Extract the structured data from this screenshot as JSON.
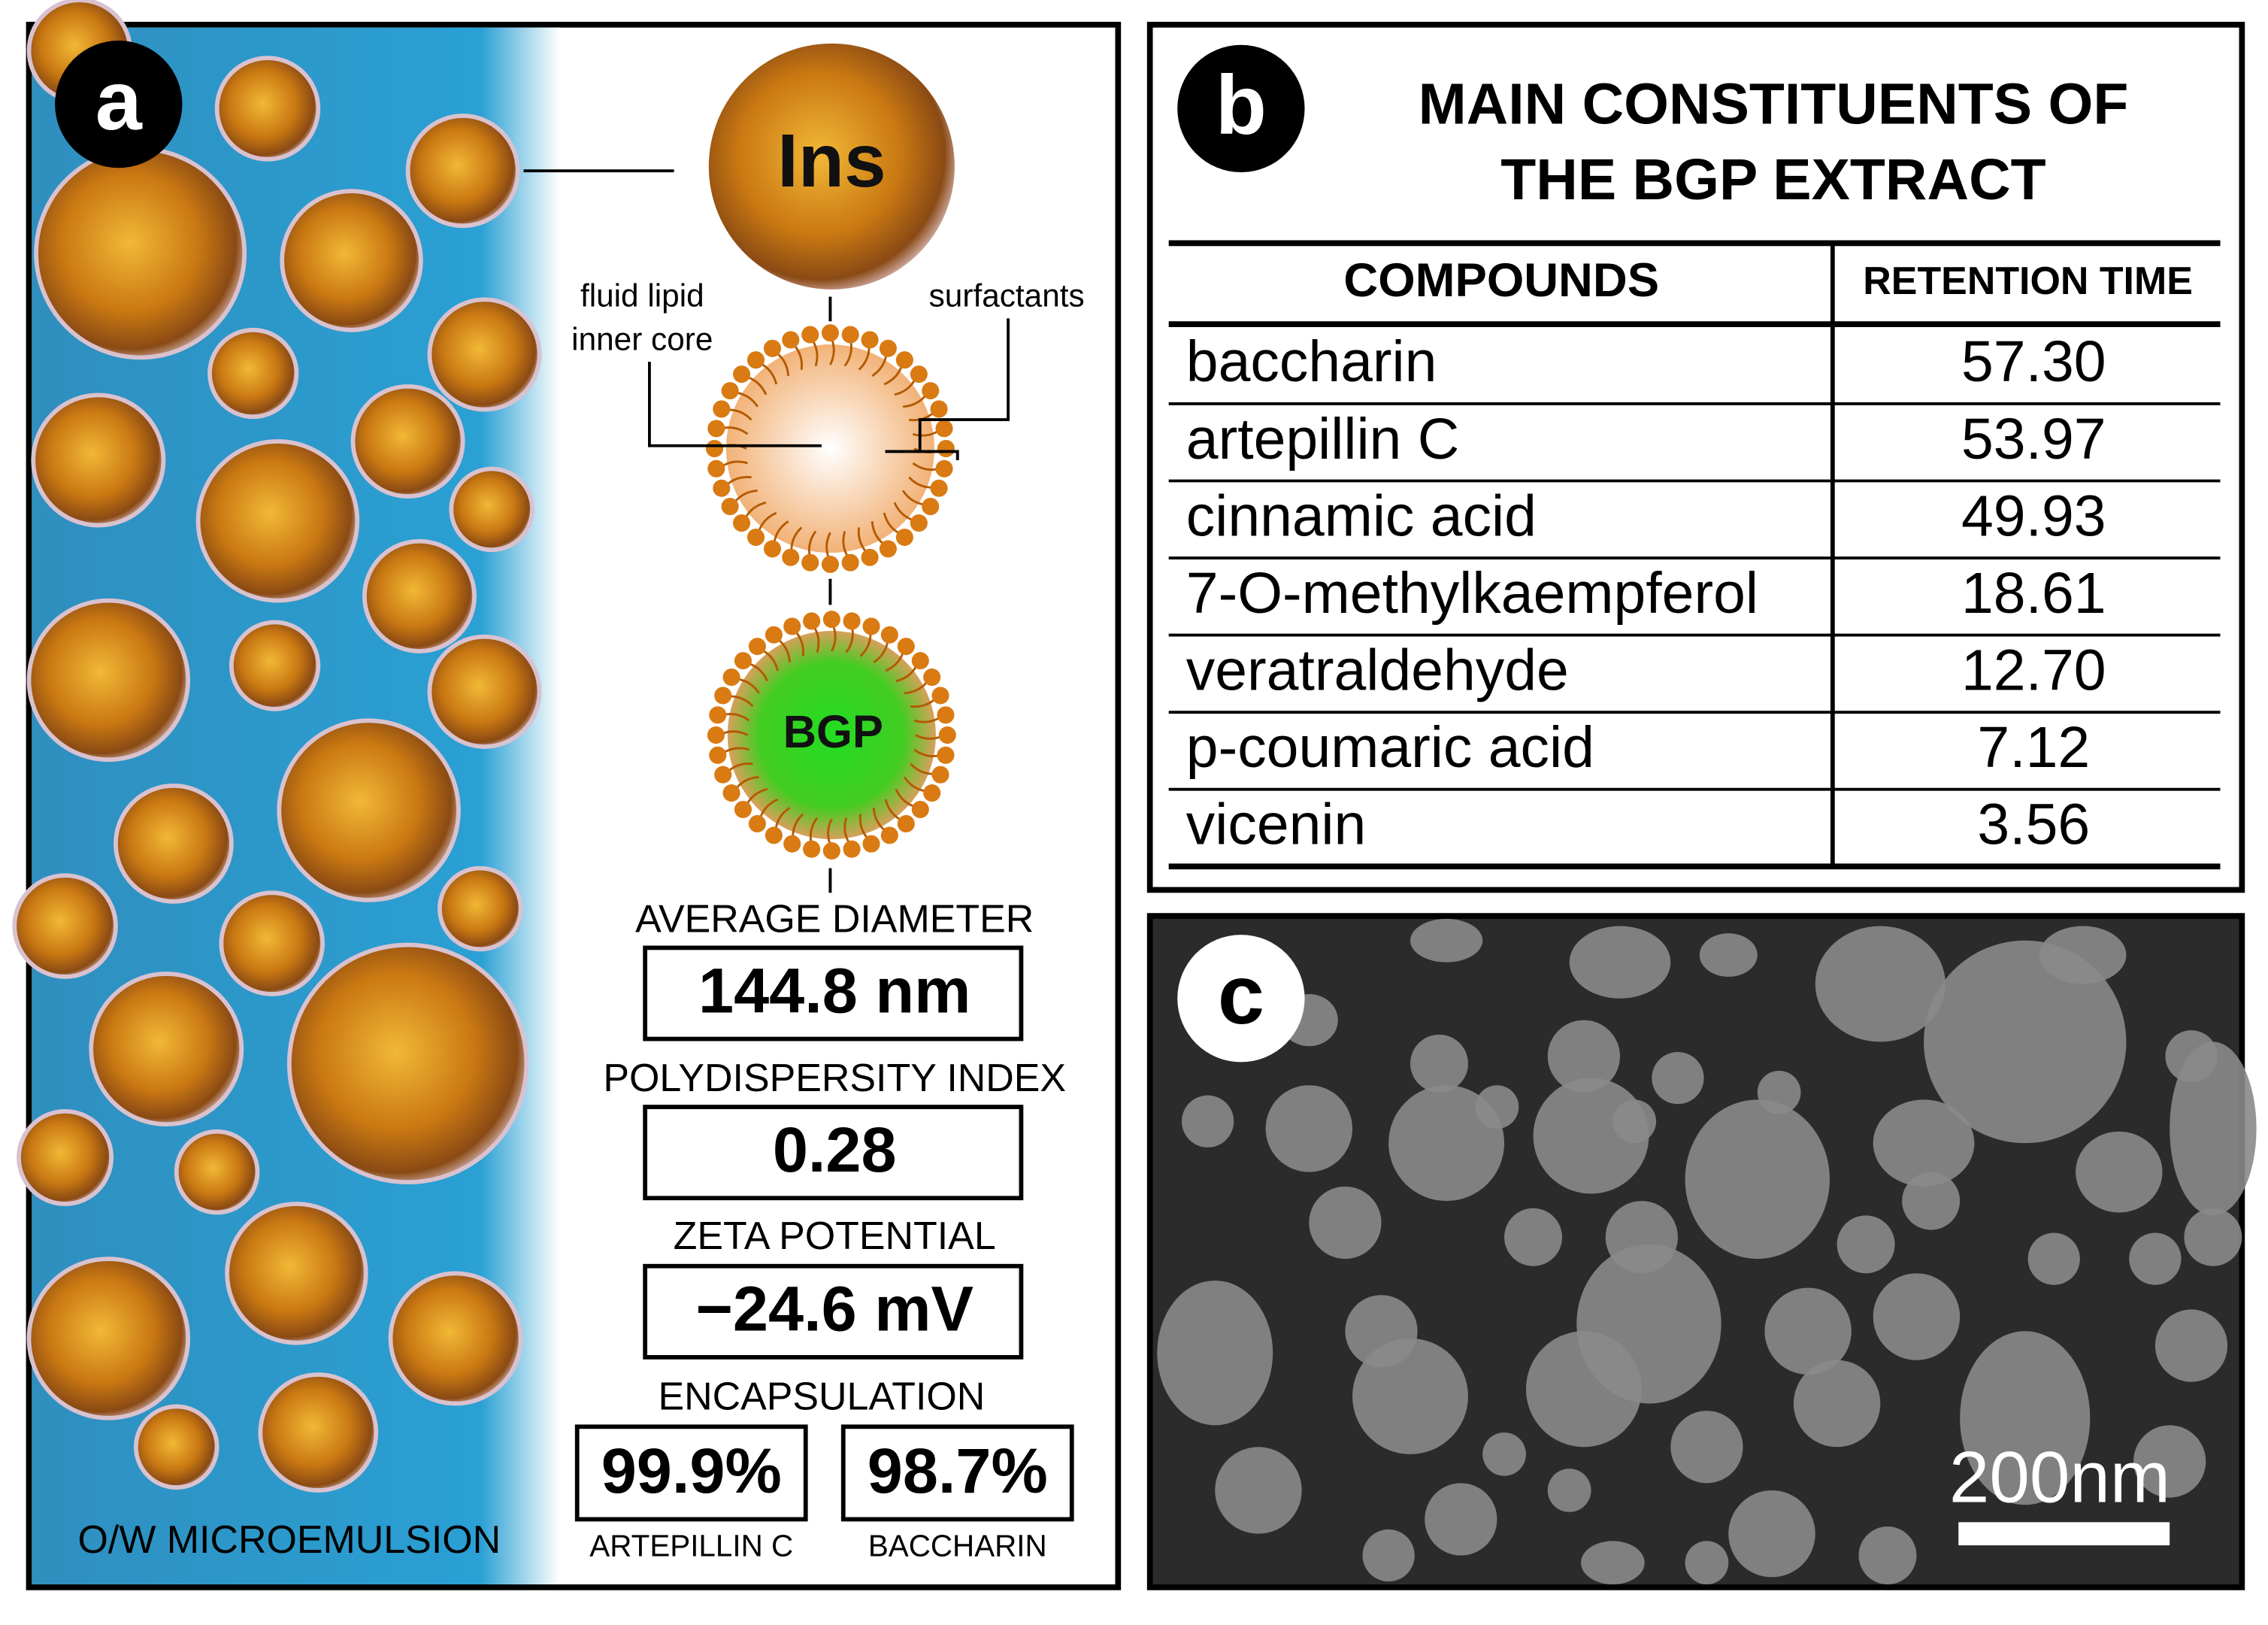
{
  "panel_a": {
    "label": "a",
    "ins_label": "Ins",
    "core_label_lines": [
      "fluid lipid",
      "inner core"
    ],
    "surfactants_label": "surfactants",
    "bgp_label": "BGP",
    "measurements": [
      {
        "title": "AVERAGE DIAMETER",
        "value": "144.8 nm"
      },
      {
        "title": "POLYDISPERSITY INDEX",
        "value": "0.28"
      },
      {
        "title": "ZETA POTENTIAL",
        "value": "−24.6 mV"
      }
    ],
    "encapsulation": {
      "title": "ENCAPSULATION",
      "items": [
        {
          "value": "99.9%",
          "label": "ARTEPILLIN C"
        },
        {
          "value": "98.7%",
          "label": "BACCHARIN"
        }
      ]
    },
    "footer": "O/W MICROEMULSION"
  },
  "panel_b": {
    "label": "b",
    "title_lines": [
      "MAIN CONSTITUENTS OF",
      "THE BGP EXTRACT"
    ],
    "table": {
      "headers": [
        "COMPOUNDS",
        "RETENTION TIME"
      ],
      "rows": [
        [
          "baccharin",
          "57.30"
        ],
        [
          "artepillin C",
          "53.97"
        ],
        [
          "cinnamic acid",
          "49.93"
        ],
        [
          "7-O-methylkaempferol",
          "18.61"
        ],
        [
          "veratraldehyde",
          "12.70"
        ],
        [
          "p-coumaric acid",
          "7.12"
        ],
        [
          "vicenin",
          "3.56"
        ]
      ]
    }
  },
  "panel_c": {
    "label": "c",
    "scale_bar": "200nm"
  }
}
